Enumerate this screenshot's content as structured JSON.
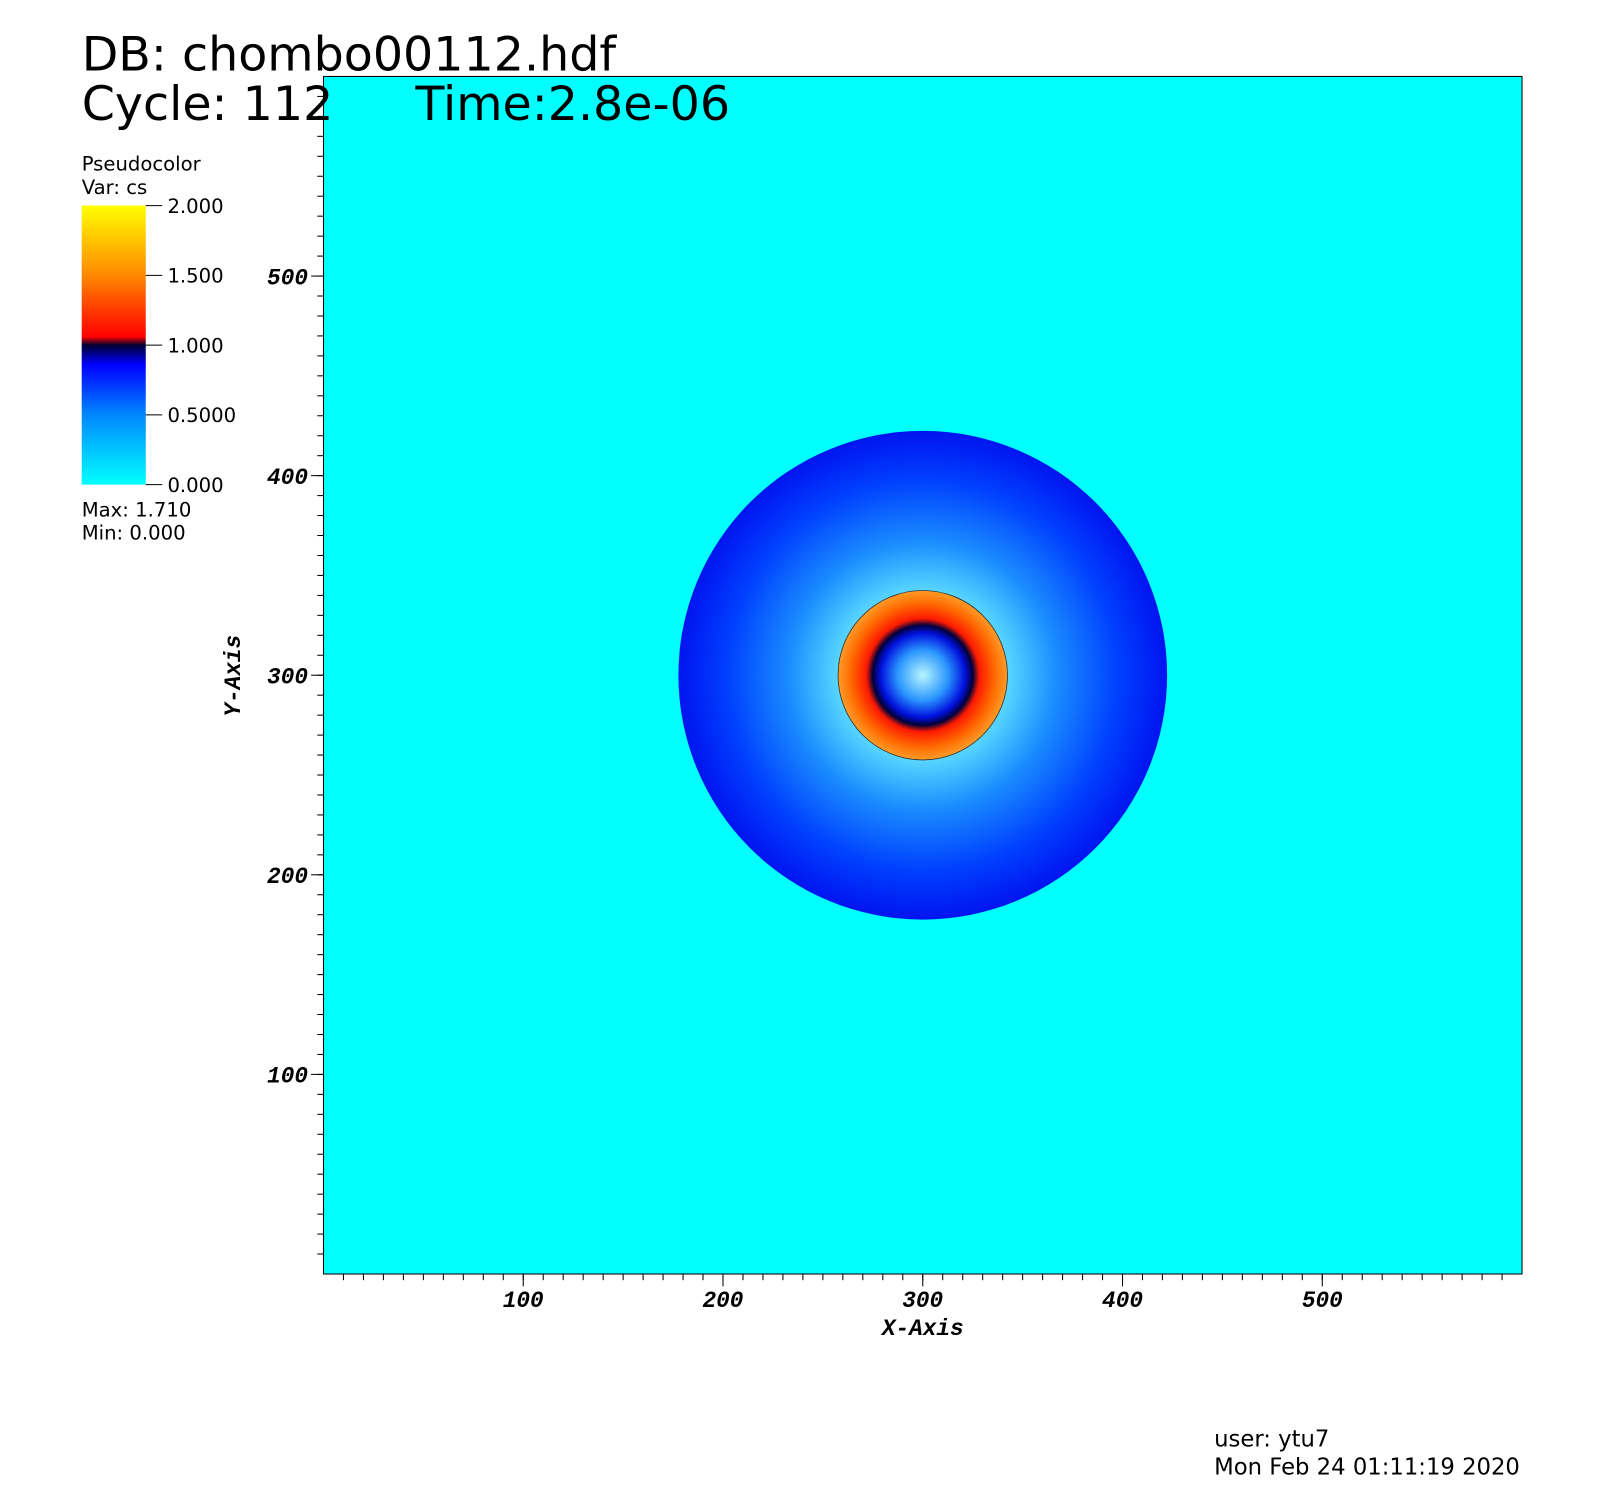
{
  "chart_data": {
    "type": "pseudocolor",
    "title": "DB: chombo00112.hdf",
    "cycle": "Cycle: 112",
    "time": "Time:2.8e-06",
    "legend_title": "Pseudocolor",
    "variable": "Var: cs",
    "colorbar": {
      "lim": [
        0,
        2
      ],
      "ticks": [
        {
          "value": 0,
          "label": "0.000"
        },
        {
          "value": 0.5,
          "label": "0.5000"
        },
        {
          "value": 1,
          "label": "1.000"
        },
        {
          "value": 1.5,
          "label": "1.500"
        },
        {
          "value": 2,
          "label": "2.000"
        }
      ]
    },
    "max_text": "Max:  1.710",
    "min_text": "Min:  0.000",
    "x_label": "X-Axis",
    "y_label": "Y-Axis",
    "xlim": [
      0,
      600
    ],
    "ylim": [
      0,
      600
    ],
    "xticks": [
      100,
      200,
      300,
      400,
      500
    ],
    "yticks": [
      100,
      200,
      300,
      400,
      500
    ],
    "minor_tick_step": 10,
    "background_color": "#00ffff",
    "user": "user: ytu7",
    "date": "Mon Feb 24 01:11:19 2020"
  }
}
